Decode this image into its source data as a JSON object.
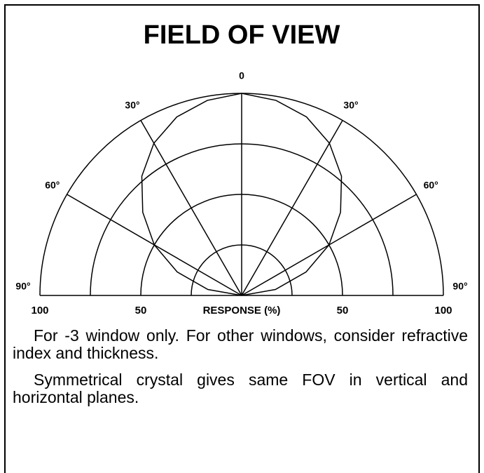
{
  "chart_data": {
    "type": "polar",
    "title": "FIELD OF VIEW",
    "r_axis_label": "RESPONSE (%)",
    "rlim": [
      0,
      100
    ],
    "rticks": [
      50,
      100
    ],
    "minor_rticks": [
      25,
      75
    ],
    "theta_ticks": [
      {
        "value": -90,
        "label": "90°"
      },
      {
        "value": -60,
        "label": "60°"
      },
      {
        "value": -30,
        "label": "30°"
      },
      0,
      {
        "value": 30,
        "label": "30°"
      },
      {
        "value": 60,
        "label": "60°"
      },
      {
        "value": 90,
        "label": "90°"
      }
    ],
    "series": [
      {
        "theta": [
          -90,
          -80,
          -70,
          -60,
          -50,
          -40,
          -30,
          -20,
          -10,
          0,
          10,
          20,
          30,
          40,
          50,
          60,
          70,
          80,
          90
        ],
        "values": [
          0,
          17,
          34,
          50,
          64,
          77,
          87,
          94,
          98,
          100,
          98,
          94,
          87,
          77,
          64,
          50,
          34,
          17,
          0
        ],
        "color": "#000000"
      }
    ],
    "notes": [
      "For -3 window only.  For other windows, consider refractive index and thickness.",
      "Symmetrical crystal gives same FOV in vertical and horizontal planes."
    ]
  }
}
